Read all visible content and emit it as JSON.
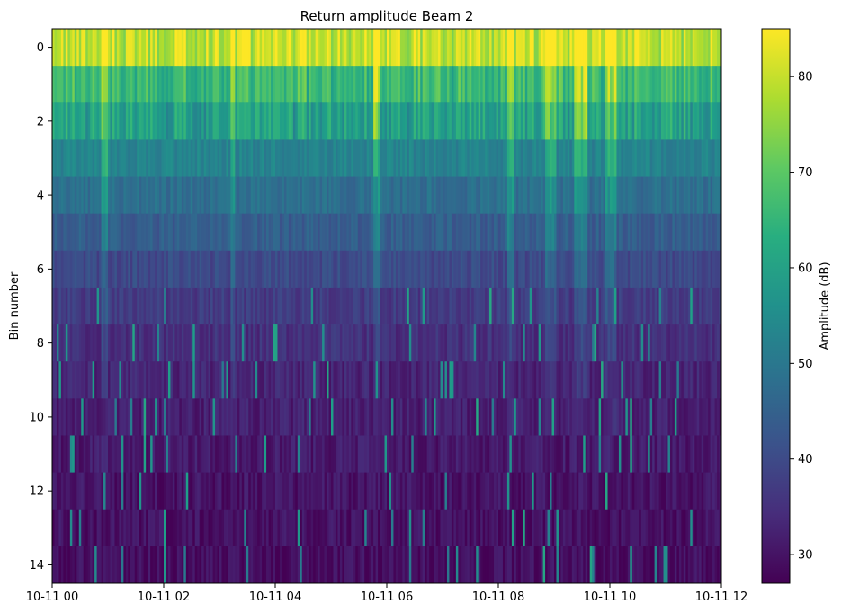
{
  "chart_data": {
    "type": "heatmap",
    "title": "Return amplitude Beam 2",
    "xlabel": "",
    "ylabel": "Bin number",
    "x_ticks": [
      "10-11 00",
      "10-11 02",
      "10-11 04",
      "10-11 06",
      "10-11 08",
      "10-11 10",
      "10-11 12"
    ],
    "x_tick_hours": [
      0,
      2,
      4,
      6,
      8,
      10,
      12
    ],
    "x_range_hours": [
      0,
      12
    ],
    "y_ticks": [
      "0",
      "2",
      "4",
      "6",
      "8",
      "10",
      "12",
      "14"
    ],
    "y_tick_values": [
      0,
      2,
      4,
      6,
      8,
      10,
      12,
      14
    ],
    "bins": 15,
    "y_range": [
      -0.5,
      14.5
    ],
    "y_inverted": true,
    "colormap": "viridis",
    "colorbar": {
      "label": "Amplitude (dB)",
      "ticks": [
        "30",
        "40",
        "50",
        "60",
        "70",
        "80"
      ],
      "tick_values": [
        30,
        40,
        50,
        60,
        70,
        80
      ],
      "range": [
        27,
        85
      ]
    },
    "profile_by_bin": [
      80,
      66,
      60,
      53,
      48,
      44,
      40,
      37,
      35,
      33,
      32,
      31,
      30,
      29.5,
      29
    ],
    "high_return_bands_hours": [
      [
        0.88,
        0.98
      ],
      [
        3.2,
        3.3
      ],
      [
        5.78,
        5.88
      ],
      [
        8.15,
        8.28
      ],
      [
        8.85,
        9.05
      ],
      [
        9.35,
        9.6
      ],
      [
        9.9,
        10.1
      ]
    ]
  }
}
